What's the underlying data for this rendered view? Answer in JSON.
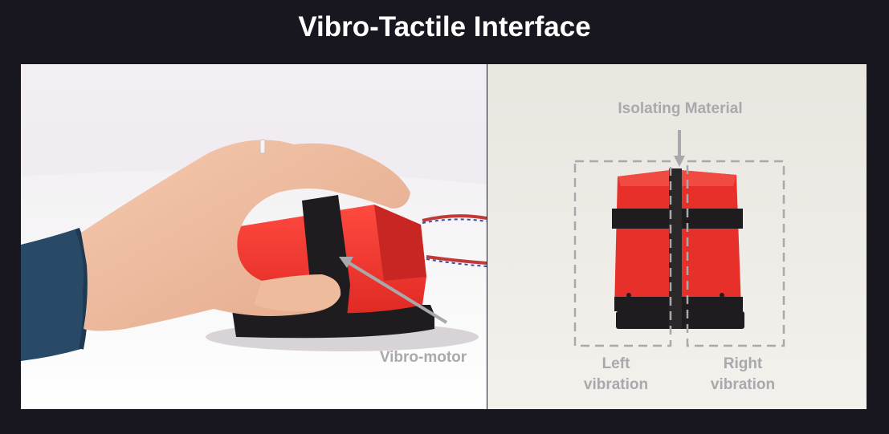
{
  "header": {
    "title": "Vibro-Tactile Interface"
  },
  "left_photo": {
    "annotation": "Vibro-motor",
    "icon": "arrow-icon"
  },
  "right_photo": {
    "annotation_top": "Isolating Material",
    "label_left": "Left\nvibration",
    "label_left_line1": "Left",
    "label_left_line2": "vibration",
    "label_right_line1": "Right",
    "label_right_line2": "vibration",
    "icon": "arrow-down-icon"
  },
  "colors": {
    "background": "#18161f",
    "device_red": "#e8302a",
    "device_black": "#1e1c1e",
    "annotation_gray": "#a9a9ad"
  }
}
